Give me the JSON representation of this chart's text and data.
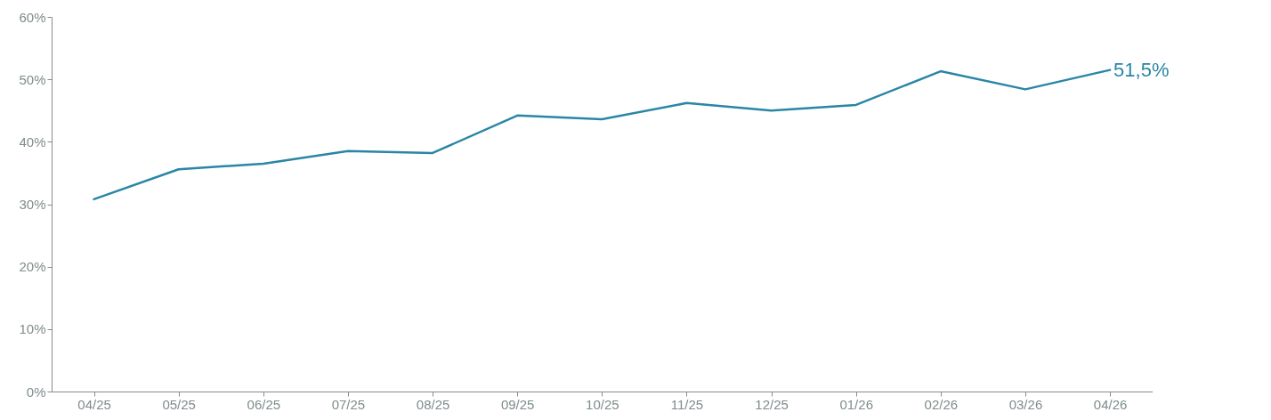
{
  "chart_data": {
    "type": "line",
    "categories": [
      "04/25",
      "05/25",
      "06/25",
      "07/25",
      "08/25",
      "09/25",
      "10/25",
      "11/25",
      "12/25",
      "01/26",
      "02/26",
      "03/26",
      "04/26"
    ],
    "series": [
      {
        "color": "#2a86a6",
        "values": [
          30.8,
          35.6,
          36.5,
          38.5,
          38.2,
          44.2,
          43.6,
          46.2,
          45.0,
          45.9,
          51.3,
          48.4,
          51.5
        ]
      }
    ],
    "ylim": [
      0,
      60
    ],
    "yticks": [
      {
        "value": 0,
        "label": "0%"
      },
      {
        "value": 10,
        "label": "10%"
      },
      {
        "value": 20,
        "label": "20%"
      },
      {
        "value": 30,
        "label": "30%"
      },
      {
        "value": 40,
        "label": "40%"
      },
      {
        "value": 50,
        "label": "50%"
      },
      {
        "value": 60,
        "label": "60%"
      }
    ],
    "annotations": [
      {
        "text": "51,5%",
        "x": "04/26",
        "y": 51.5
      }
    ],
    "grid": false,
    "marker": "none",
    "line_style": "solid"
  }
}
